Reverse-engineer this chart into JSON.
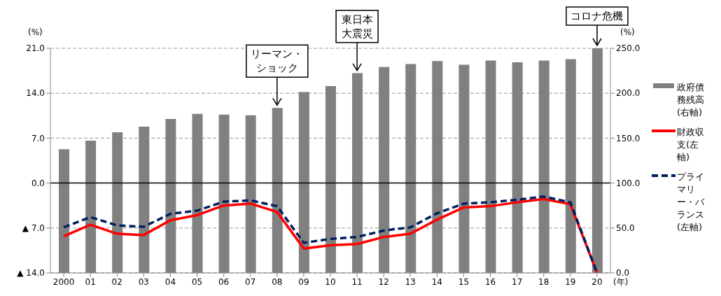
{
  "chart_data": {
    "type": "bar",
    "ylabel": "(%)",
    "y2label": "(%)",
    "xlabel": "(年)",
    "categories": [
      "2000",
      "01",
      "02",
      "03",
      "04",
      "05",
      "06",
      "07",
      "08",
      "09",
      "10",
      "11",
      "12",
      "13",
      "14",
      "15",
      "16",
      "17",
      "18",
      "19",
      "20"
    ],
    "series": [
      {
        "name": "政府債務残高(右軸)",
        "axis": "y2",
        "color": "#808080",
        "values": [
          137.6,
          147.1,
          156.5,
          162.7,
          171.4,
          177.0,
          176.2,
          175.4,
          183.6,
          201.3,
          207.9,
          222.3,
          229.2,
          232.5,
          235.8,
          231.7,
          236.3,
          234.5,
          236.3,
          237.9,
          250.0
        ]
      },
      {
        "name": "財政収支(左軸)",
        "type": "line",
        "color": "#ff0000",
        "line_style": "solid",
        "values": [
          -8.3,
          -6.5,
          -7.9,
          -8.1,
          -5.8,
          -5.0,
          -3.5,
          -3.2,
          -4.5,
          -10.2,
          -9.7,
          -9.5,
          -8.4,
          -7.9,
          -5.7,
          -3.8,
          -3.6,
          -3.0,
          -2.5,
          -3.3,
          -14.0
        ]
      },
      {
        "name": "プライマリー・バランス(左軸)",
        "type": "line",
        "color": "#002060",
        "line_style": "dashed",
        "values": [
          -6.9,
          -5.3,
          -6.6,
          -6.8,
          -4.8,
          -4.3,
          -2.9,
          -2.7,
          -3.6,
          -9.3,
          -8.7,
          -8.4,
          -7.4,
          -6.9,
          -4.7,
          -3.2,
          -3.0,
          -2.6,
          -2.1,
          -3.0,
          -14.0
        ]
      }
    ],
    "ylim": [
      -14,
      21
    ],
    "yticks": [
      {
        "value": -14,
        "label": "▲ 14.0"
      },
      {
        "value": -7,
        "label": "▲ 7.0"
      },
      {
        "value": 0,
        "label": "0.0"
      },
      {
        "value": 7,
        "label": "7.0"
      },
      {
        "value": 14,
        "label": "14.0"
      },
      {
        "value": 21,
        "label": "21.0"
      }
    ],
    "y2lim": [
      0,
      250
    ],
    "y2ticks": [
      {
        "value": 0,
        "label": "0.0"
      },
      {
        "value": 50,
        "label": "50.0"
      },
      {
        "value": 100,
        "label": "100.0"
      },
      {
        "value": 150,
        "label": "150.0"
      },
      {
        "value": 200,
        "label": "200.0"
      },
      {
        "value": 250,
        "label": "250.0"
      }
    ],
    "ref_lines": [
      {
        "axis": "y",
        "value": 0,
        "color": "#000000"
      }
    ],
    "grid": "y",
    "legend": "right",
    "marker": "none",
    "annotations": [
      {
        "text": "リーマン・ショック",
        "x": "08",
        "y": 11.7
      },
      {
        "text": "東日本大震災",
        "x": "11",
        "y": 17.1
      },
      {
        "text": "コロナ危機",
        "x": "20",
        "y": 21
      }
    ]
  }
}
